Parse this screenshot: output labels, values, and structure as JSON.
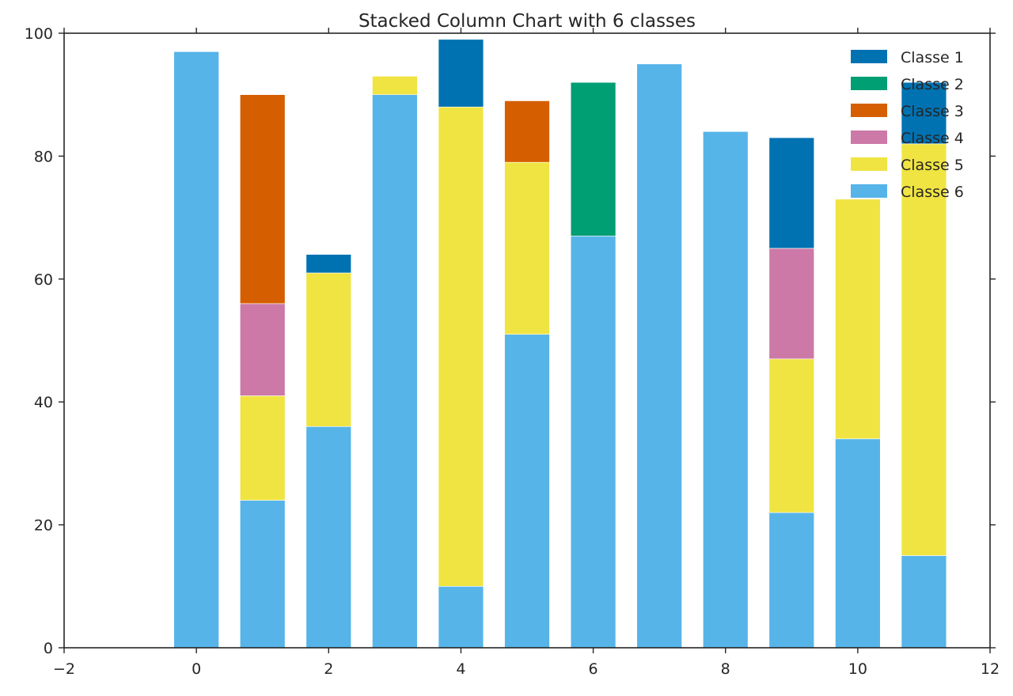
{
  "chart_data": {
    "type": "bar",
    "stacked": true,
    "title": "Stacked Column Chart with 6 classes",
    "xlabel": "",
    "ylabel": "",
    "xlim": [
      -2,
      12
    ],
    "ylim": [
      0,
      100
    ],
    "xticks": [
      "−2",
      "0",
      "2",
      "4",
      "6",
      "8",
      "10",
      "12"
    ],
    "yticks": [
      "0",
      "20",
      "40",
      "60",
      "80",
      "100"
    ],
    "x": [
      0,
      1,
      2,
      3,
      4,
      5,
      6,
      7,
      8,
      9,
      10,
      11
    ],
    "bar_width": 0.68,
    "grid": false,
    "legend_position": "top-right",
    "series": [
      {
        "name": "Classe 1",
        "color": "#0072b2",
        "values": [
          0,
          0,
          3,
          0,
          11,
          0,
          0,
          0,
          0,
          18,
          0,
          10
        ]
      },
      {
        "name": "Classe 2",
        "color": "#009e73",
        "values": [
          0,
          0,
          0,
          0,
          0,
          0,
          25,
          0,
          0,
          0,
          0,
          0
        ]
      },
      {
        "name": "Classe 3",
        "color": "#d55e00",
        "values": [
          0,
          34,
          0,
          0,
          0,
          10,
          0,
          0,
          0,
          0,
          0,
          0
        ]
      },
      {
        "name": "Classe 4",
        "color": "#cc79a7",
        "values": [
          0,
          15,
          0,
          0,
          0,
          0,
          0,
          0,
          0,
          18,
          0,
          0
        ]
      },
      {
        "name": "Classe 5",
        "color": "#f0e442",
        "values": [
          0,
          17,
          25,
          3,
          78,
          28,
          0,
          0,
          0,
          25,
          39,
          67
        ]
      },
      {
        "name": "Classe 6",
        "color": "#56b4e9",
        "values": [
          97,
          24,
          36,
          90,
          10,
          51,
          67,
          95,
          84,
          22,
          34,
          15
        ]
      }
    ]
  }
}
